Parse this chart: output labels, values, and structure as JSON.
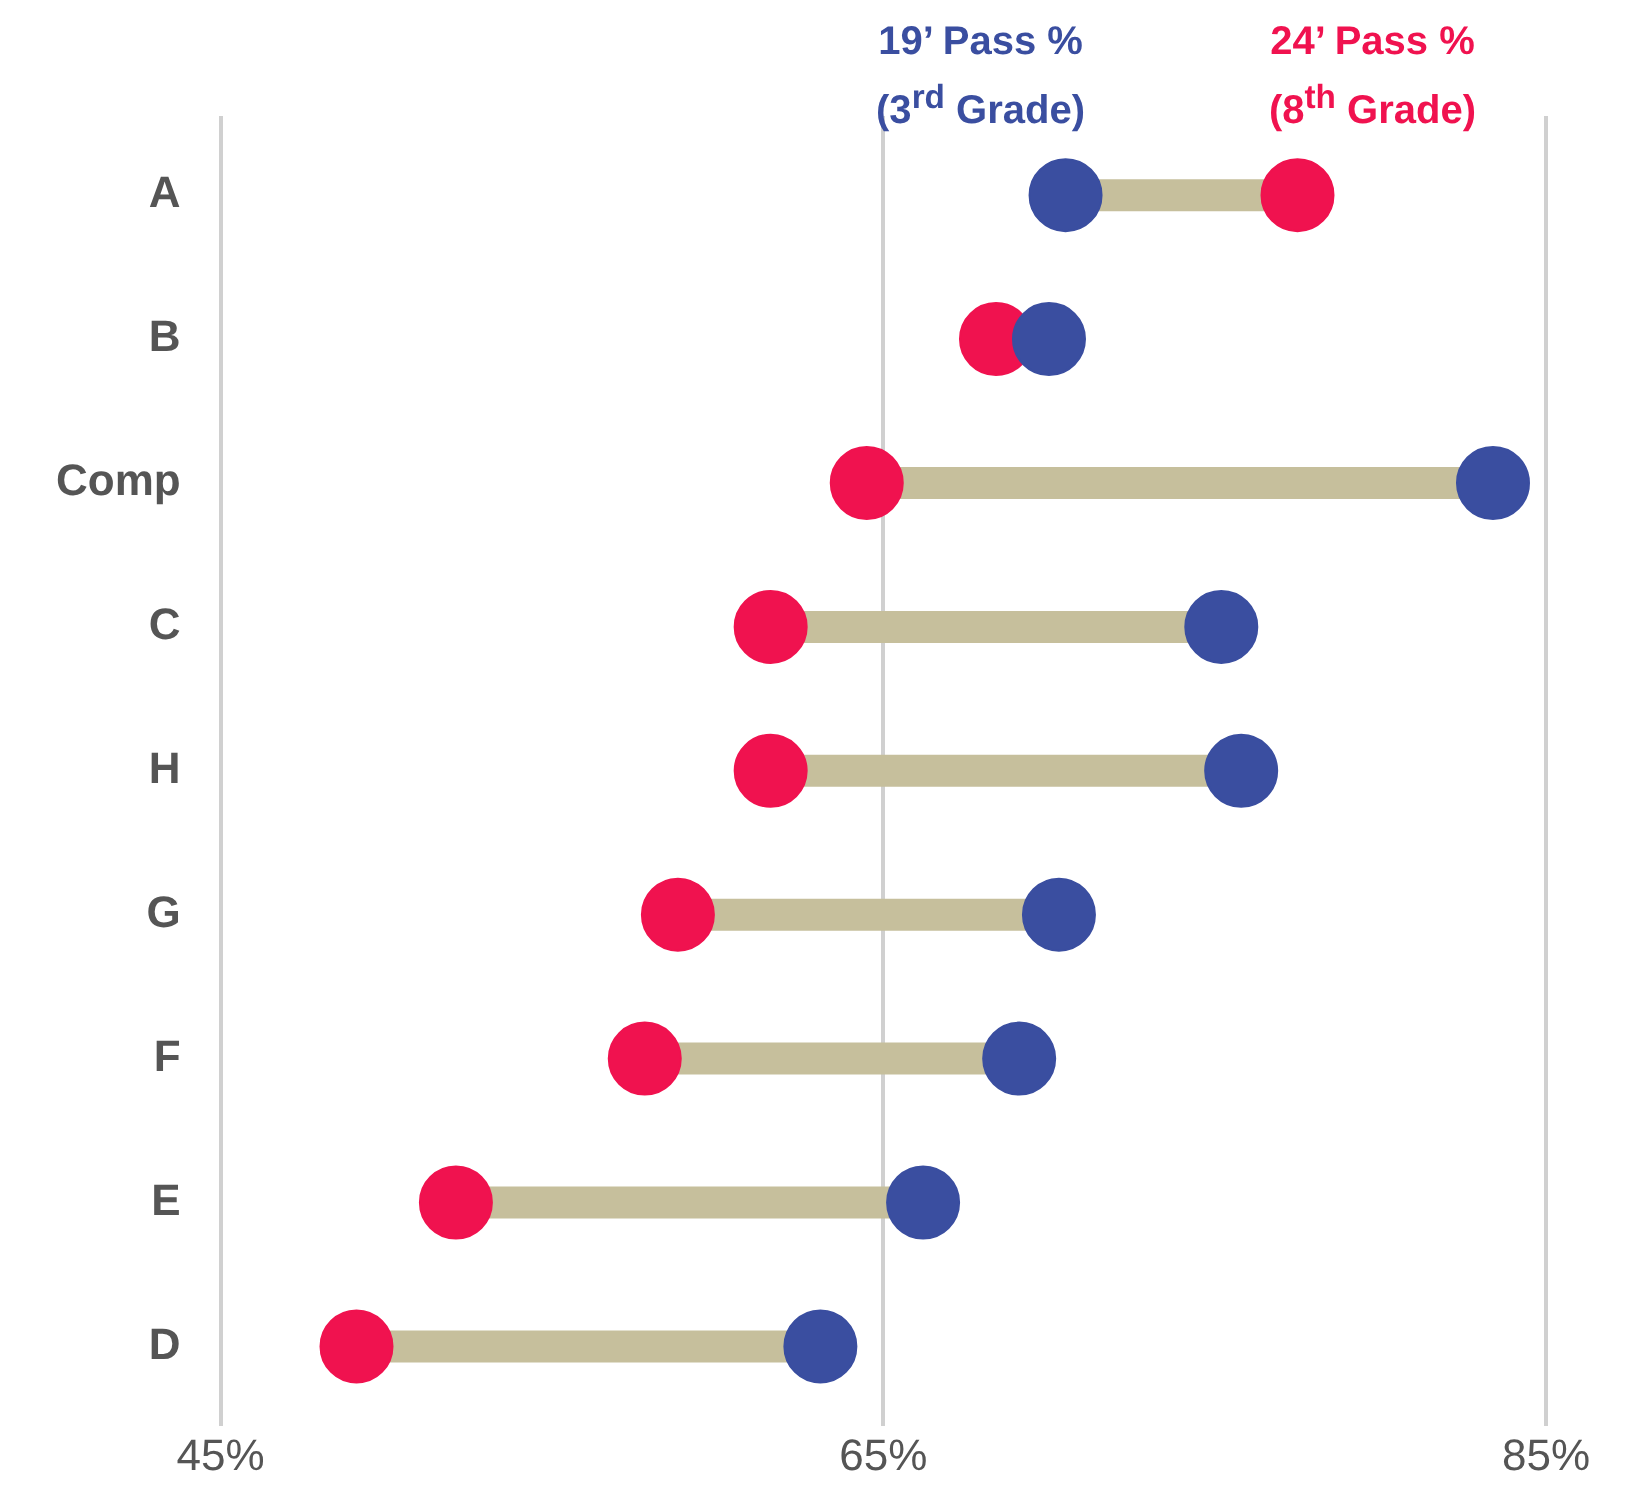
{
  "chart_data": {
    "type": "scatter",
    "orientation": "horizontal",
    "categories": [
      "A",
      "B",
      "Comp",
      "C",
      "H",
      "G",
      "F",
      "E",
      "D"
    ],
    "series": [
      {
        "name": "19’ Pass % (3$^{rd}$ Grade)",
        "color": "#3a4ea0",
        "values": [
          70.5,
          70.0,
          83.4,
          75.2,
          75.8,
          70.3,
          69.1,
          66.2,
          63.1
        ]
      },
      {
        "name": "24’ Pass % (8$^{th}$ Grade)",
        "color": "#f0124f",
        "values": [
          77.5,
          68.4,
          64.5,
          61.6,
          61.6,
          58.8,
          57.8,
          52.1,
          49.1
        ]
      }
    ],
    "xlim": [
      45,
      85
    ],
    "xticks": [
      {
        "value": 45,
        "label": "45%"
      },
      {
        "value": 65,
        "label": "65%"
      },
      {
        "value": 85,
        "label": "85%"
      }
    ],
    "grid": "x",
    "legend": false,
    "marker": "circle"
  }
}
